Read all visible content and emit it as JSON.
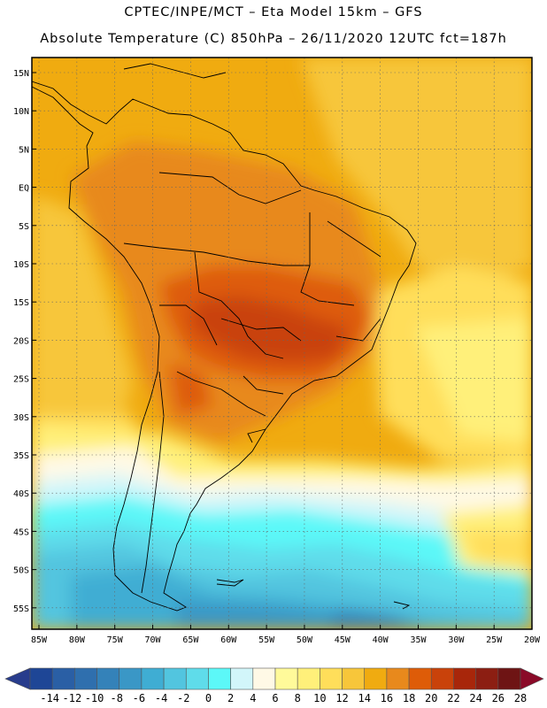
{
  "header": {
    "line1": "CPTEC/INPE/MCT –  Eta Model 15km – GFS",
    "line2": "Absolute Temperature (C) 850hPa – 26/11/2020 12UTC fct=187h"
  },
  "axes": {
    "lat_labels": [
      "15N",
      "10N",
      "5N",
      "EQ",
      "5S",
      "10S",
      "15S",
      "20S",
      "25S",
      "30S",
      "35S",
      "40S",
      "45S",
      "50S",
      "55S"
    ],
    "lon_labels": [
      "85W",
      "80W",
      "75W",
      "70W",
      "65W",
      "60W",
      "55W",
      "50W",
      "45W",
      "40W",
      "35W",
      "30W",
      "25W",
      "20W"
    ]
  },
  "legend": {
    "labels": [
      "-14",
      "-12",
      "-10",
      "-8",
      "-6",
      "-4",
      "-2",
      "0",
      "2",
      "4",
      "6",
      "8",
      "10",
      "12",
      "14",
      "16",
      "18",
      "20",
      "22",
      "24",
      "26",
      "28"
    ],
    "colors": [
      "#283c8c",
      "#1e4696",
      "#2a5fa5",
      "#2f6fae",
      "#3482b9",
      "#3a97c6",
      "#3fadd3",
      "#52c5df",
      "#5fdcea",
      "#5cf8f8",
      "#d2f6fa",
      "#fff9e6",
      "#fffa9a",
      "#fff07a",
      "#ffde5a",
      "#f7c63a",
      "#f0ab10",
      "#e8891c",
      "#de5c08",
      "#c9420a",
      "#a8260a",
      "#8c1e12",
      "#6e1414",
      "#8a0a28"
    ]
  }
}
